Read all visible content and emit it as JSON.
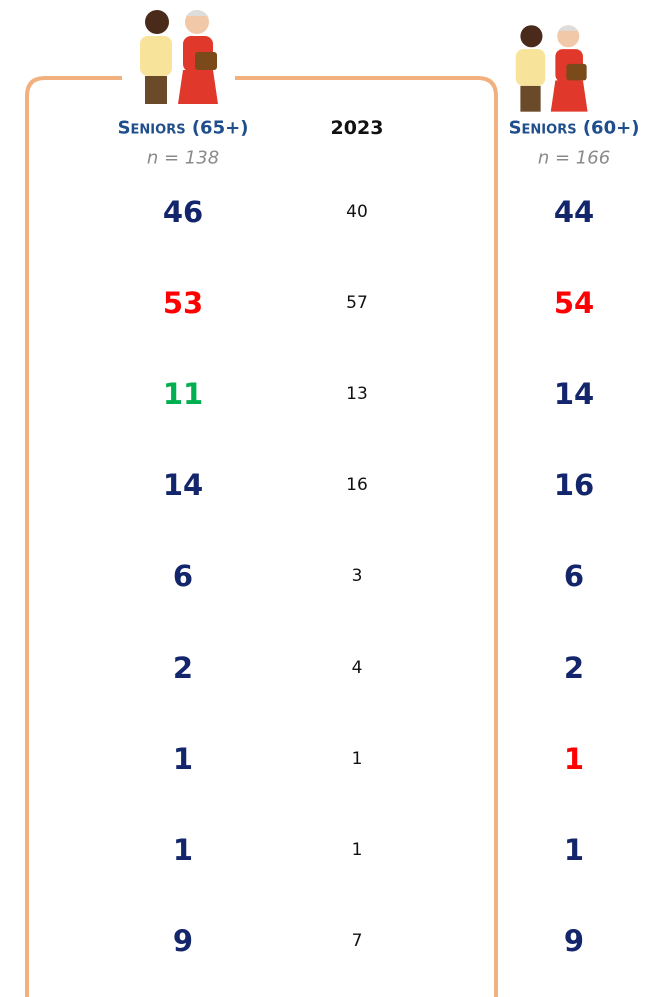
{
  "table": {
    "columns": [
      {
        "title": "Seniors (65+)",
        "n": "n = 138",
        "values": [
          46,
          53,
          11,
          14,
          6,
          2,
          1,
          1,
          9
        ],
        "colors": [
          "#14266b",
          "#ff0000",
          "#00b050",
          "#14266b",
          "#14266b",
          "#14266b",
          "#14266b",
          "#14266b",
          "#14266b"
        ]
      },
      {
        "title": "2023",
        "values": [
          40,
          57,
          13,
          16,
          3,
          4,
          1,
          1,
          7
        ]
      },
      {
        "title": "Seniors (60+)",
        "n": "n = 166",
        "values": [
          44,
          54,
          14,
          16,
          6,
          2,
          1,
          1,
          9
        ],
        "colors": [
          "#14266b",
          "#ff0000",
          "#14266b",
          "#14266b",
          "#14266b",
          "#14266b",
          "#ff0000",
          "#14266b",
          "#14266b"
        ]
      }
    ]
  }
}
